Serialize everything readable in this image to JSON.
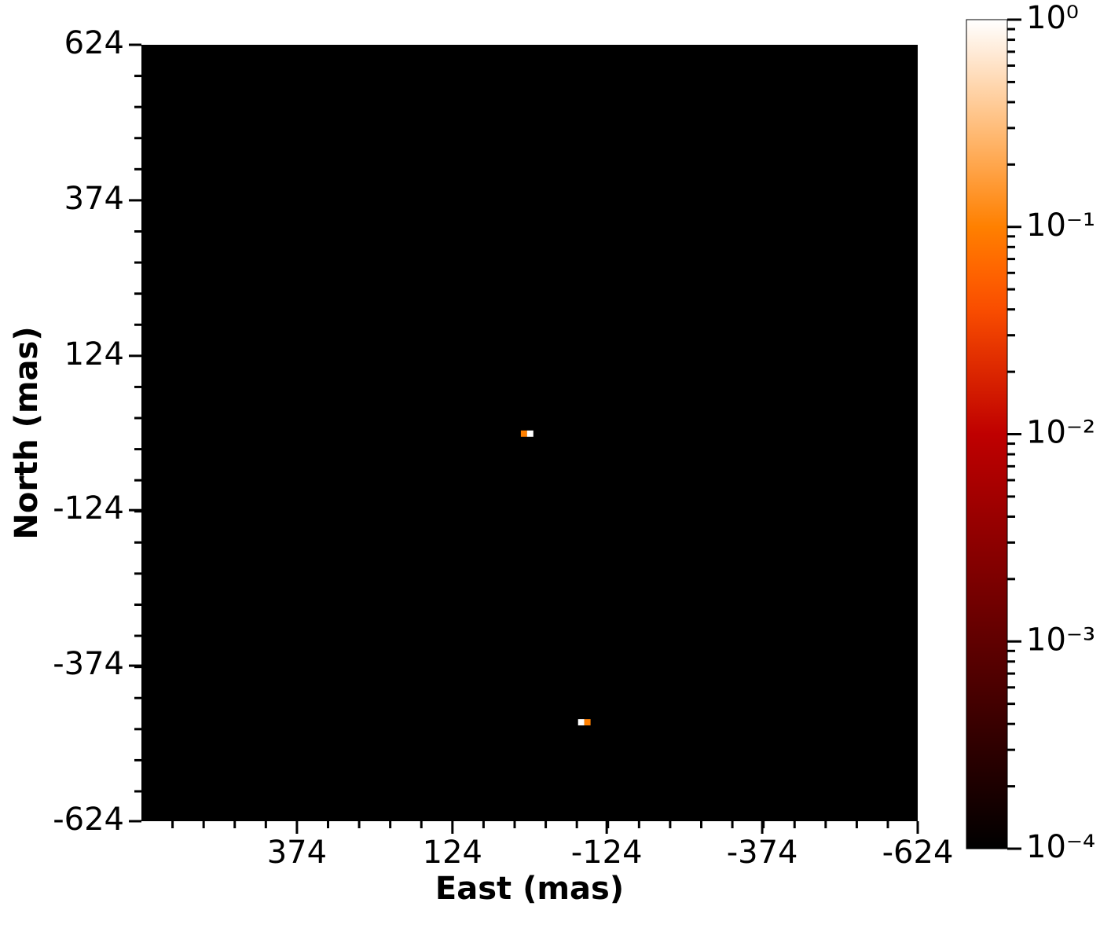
{
  "chart_data": {
    "type": "heatmap",
    "xlabel": "East (mas)",
    "ylabel": "North (mas)",
    "x": [
      9,
      -1,
      -83,
      -93
    ],
    "y": [
      -1,
      -1,
      -465,
      -465
    ],
    "values": [
      0.1,
      1,
      1,
      0.1
    ],
    "xlim": [
      624,
      -624
    ],
    "xticks": [
      374,
      124,
      -124,
      -374,
      -624
    ],
    "ylim": [
      -624,
      624
    ],
    "yticks": [
      624,
      374,
      124,
      -124,
      -374,
      -624
    ],
    "colormap": "gist_heat",
    "color_scale": "log",
    "clim": [
      0.0001,
      1
    ],
    "cticks": [
      {
        "value": 1,
        "label": "10⁰"
      },
      {
        "value": 0.1,
        "label": "10⁻¹"
      },
      {
        "value": 0.01,
        "label": "10⁻²"
      },
      {
        "value": 0.001,
        "label": "10⁻³"
      },
      {
        "value": 0.0001,
        "label": "10⁻⁴"
      }
    ]
  }
}
